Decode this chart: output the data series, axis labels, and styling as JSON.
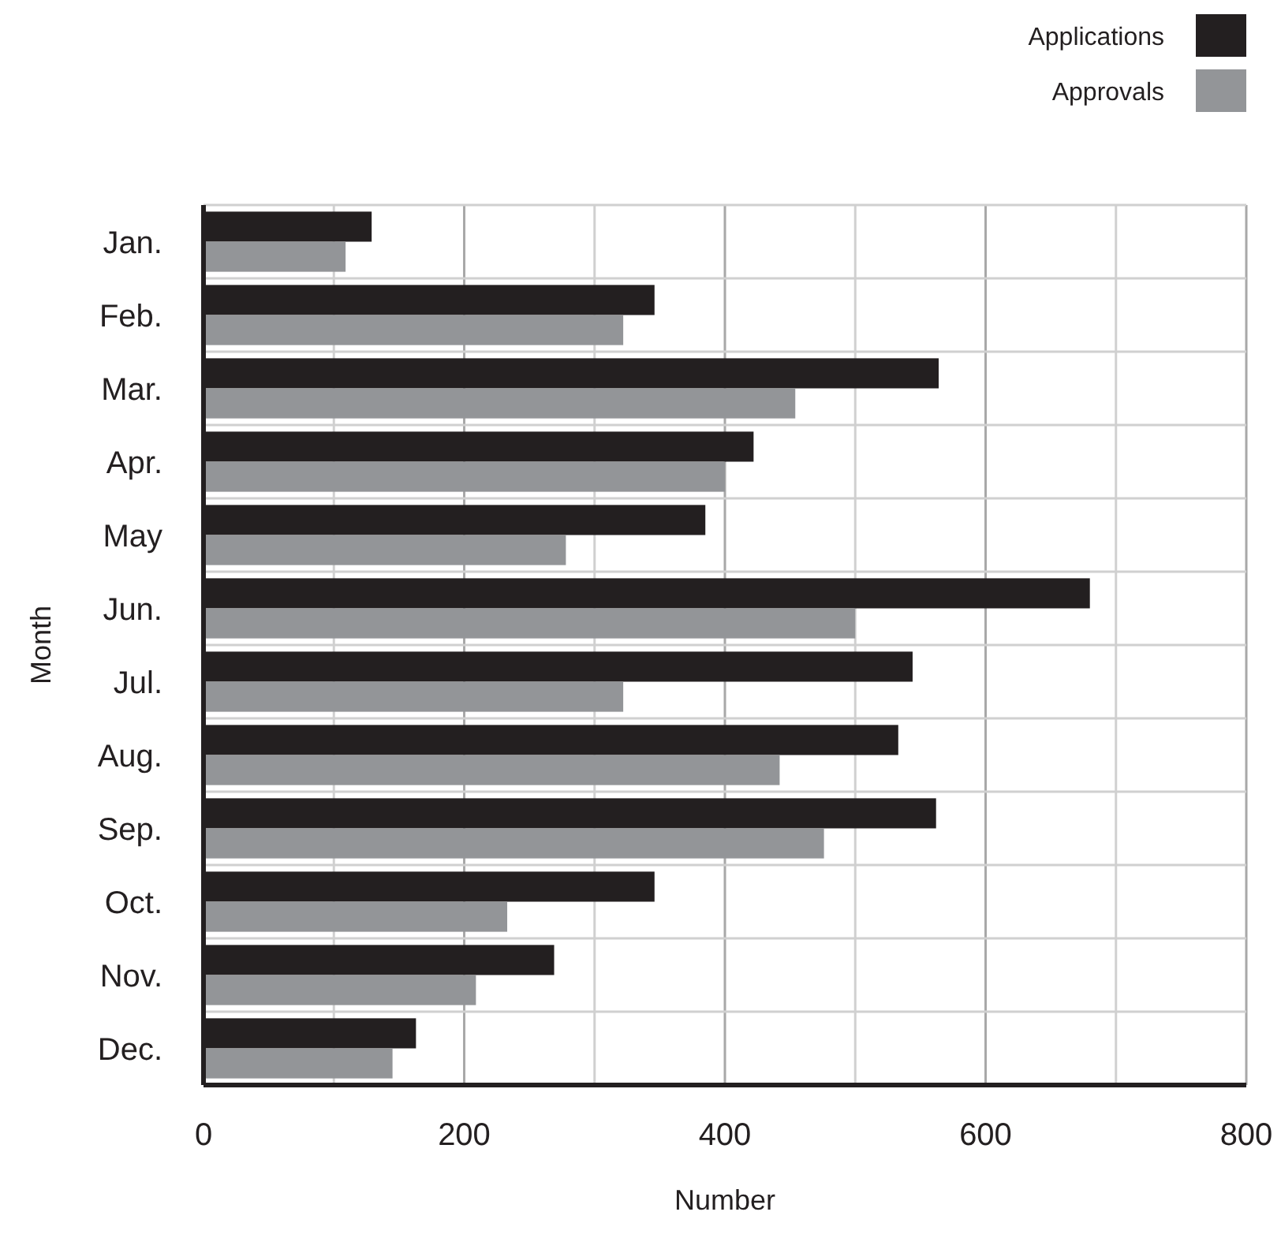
{
  "chart_data": {
    "type": "bar",
    "orientation": "horizontal",
    "xlabel": "Number",
    "ylabel": "Month",
    "categories": [
      "Jan.",
      "Feb.",
      "Mar.",
      "Apr.",
      "May",
      "Jun.",
      "Jul.",
      "Aug.",
      "Sep.",
      "Oct.",
      "Nov.",
      "Dec."
    ],
    "series": [
      {
        "name": "Applications",
        "color": "#231f20",
        "values": [
          129,
          346,
          564,
          422,
          385,
          680,
          544,
          533,
          562,
          346,
          269,
          163
        ]
      },
      {
        "name": "Approvals",
        "color": "#939598",
        "values": [
          109,
          322,
          454,
          400,
          278,
          500,
          322,
          442,
          476,
          233,
          209,
          145
        ]
      }
    ],
    "xlim": [
      0,
      800
    ],
    "xticks": [
      0,
      {
        "value": 100,
        "label": null
      },
      200,
      {
        "value": 300,
        "label": null
      },
      400,
      {
        "value": 500,
        "label": null
      },
      600,
      {
        "value": 700,
        "label": null
      },
      800
    ],
    "grid": true,
    "legend": "top right"
  }
}
